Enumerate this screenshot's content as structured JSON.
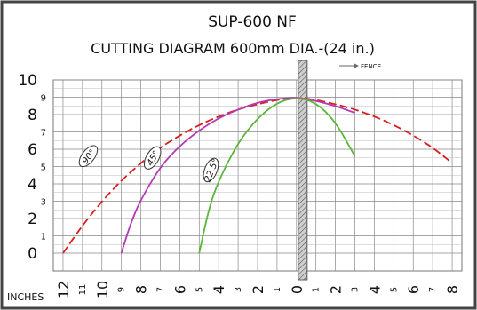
{
  "title": "SUP-600 NF",
  "subtitle": "CUTTING DIAGRAM 600mm DIA.-(24 in.)",
  "fence_label": "FENCE",
  "x_axis_label": "INCHES",
  "y_ticks_major": [
    "10",
    "8",
    "6",
    "4",
    "2",
    "0"
  ],
  "y_ticks_minor": [
    "9",
    "7",
    "5",
    "3",
    "1"
  ],
  "x_ticks": [
    "12",
    "11",
    "10",
    "9",
    "8",
    "7",
    "6",
    "5",
    "4",
    "3",
    "2",
    "1",
    "0",
    "1",
    "2",
    "3",
    "4",
    "5",
    "6",
    "7",
    "8"
  ],
  "chart_data": {
    "type": "line",
    "title": "SUP-600 NF",
    "subtitle": "CUTTING DIAGRAM 600mm DIA.-(24 in.)",
    "xlabel": "INCHES",
    "ylabel": "",
    "xlim": [
      -12.5,
      8.5
    ],
    "ylim": [
      0,
      10
    ],
    "grid": true,
    "annotations": [
      "FENCE"
    ],
    "series": [
      {
        "name": "90°",
        "color": "#d81e1e",
        "dash": true,
        "x": [
          -12,
          -11,
          -10,
          -9,
          -8,
          -7,
          -6,
          -5,
          -4,
          -3,
          -2,
          -1,
          0,
          1,
          2,
          3,
          4,
          5,
          6,
          7,
          8
        ],
        "y": [
          0.0,
          1.6,
          3.0,
          4.2,
          5.2,
          6.1,
          6.8,
          7.4,
          7.9,
          8.3,
          8.6,
          8.85,
          9.0,
          8.85,
          8.6,
          8.3,
          7.9,
          7.4,
          6.8,
          6.1,
          5.2
        ]
      },
      {
        "name": "45°",
        "color": "#b33ab3",
        "dash": false,
        "x": [
          -9,
          -8.5,
          -8,
          -7,
          -6,
          -5,
          -4,
          -3,
          -2,
          -1,
          0,
          1,
          2,
          3
        ],
        "y": [
          0.0,
          1.8,
          3.1,
          5.0,
          6.2,
          7.1,
          7.8,
          8.3,
          8.7,
          8.9,
          9.0,
          8.8,
          8.5,
          8.1
        ]
      },
      {
        "name": "22.5°",
        "color": "#5db53a",
        "dash": false,
        "x": [
          -5,
          -4.5,
          -4,
          -3,
          -2,
          -1,
          0,
          1,
          2,
          3
        ],
        "y": [
          0.0,
          2.6,
          4.2,
          6.4,
          7.8,
          8.7,
          9.0,
          8.7,
          7.6,
          5.6
        ]
      }
    ]
  }
}
